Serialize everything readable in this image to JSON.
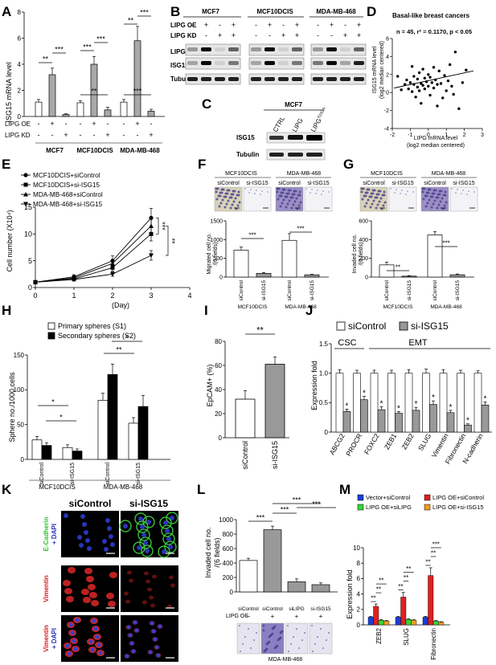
{
  "panels": [
    "A",
    "B",
    "C",
    "D",
    "E",
    "F",
    "G",
    "H",
    "I",
    "J",
    "K",
    "L",
    "M"
  ],
  "sig": {
    "s1": "*",
    "s2": "**",
    "s3": "***"
  },
  "A": {
    "chart_data": {
      "type": "bar",
      "ylabel": "ISG15 mRNA level",
      "ylim": [
        0,
        8
      ],
      "yticks": [
        "0",
        "2",
        "4",
        "6",
        "8"
      ],
      "row_labels": [
        "LIPG OE",
        "LIPG KD"
      ],
      "groups": [
        {
          "name": "MCF7",
          "values": [
            1.1,
            3.2,
            0.15
          ],
          "errors": [
            0.2,
            0.5,
            0.05
          ]
        },
        {
          "name": "MCF10DCIS",
          "values": [
            1.05,
            4.0,
            0.5
          ],
          "errors": [
            0.15,
            0.6,
            0.2
          ]
        },
        {
          "name": "MDA-MB-468",
          "values": [
            1.1,
            5.8,
            0.4
          ],
          "errors": [
            0.2,
            1.1,
            0.15
          ]
        }
      ],
      "oe": [
        "-",
        "+",
        "-"
      ],
      "kd": [
        "-",
        "-",
        "+"
      ]
    }
  },
  "B": {
    "lines": [
      "MCF7",
      "MCF10DCIS",
      "MDA-MB-468"
    ],
    "rows": [
      "LIPG OE",
      "LIPG KD"
    ],
    "oe": [
      "-",
      "+",
      "-",
      "+"
    ],
    "kd": [
      "-",
      "-",
      "+",
      "+"
    ],
    "proteins": [
      "LIPG",
      "ISG15",
      "Tubulin"
    ]
  },
  "C": {
    "title": "MCF7",
    "lanes": [
      "CTRL",
      "LIPG",
      "LIPG"
    ],
    "lane3_sup": "S163A",
    "proteins": [
      "ISG15",
      "Tubulin"
    ]
  },
  "D": {
    "chart_data": {
      "type": "scatter",
      "title": "Basal-like breast cancers",
      "stats": "n = 45,  r² = 0.1170,  p < 0.05",
      "ylabel1": "ISG15 mRNA level",
      "ylabel2": "(log2 median centered)",
      "xlabel1": "LIPG mRNA level",
      "xlabel2": "(log2 median centered)",
      "xlim": [
        -2,
        3
      ],
      "ylim": [
        -4,
        6
      ],
      "xticks": [
        "-2",
        "-1",
        "0",
        "1",
        "2",
        "3"
      ],
      "yticks": [
        "-4",
        "-2",
        "0",
        "2",
        "4",
        "6"
      ],
      "fit": {
        "x": [
          -1.9,
          2.5
        ],
        "y": [
          0.5,
          2.4
        ]
      },
      "points": [
        [
          -1.7,
          1.8
        ],
        [
          -1.5,
          0.3
        ],
        [
          -1.3,
          0.9
        ],
        [
          -1.2,
          1.4
        ],
        [
          -1.1,
          0.4
        ],
        [
          -1.0,
          1.1
        ],
        [
          -0.9,
          0.1
        ],
        [
          -0.8,
          0.9
        ],
        [
          -0.8,
          1.8
        ],
        [
          -0.7,
          -0.5
        ],
        [
          -0.6,
          1.5
        ],
        [
          -0.6,
          0.6
        ],
        [
          -0.5,
          2.2
        ],
        [
          -0.5,
          0.2
        ],
        [
          -0.4,
          1.0
        ],
        [
          -0.4,
          -1.2
        ],
        [
          -0.3,
          2.6
        ],
        [
          -0.3,
          0.8
        ],
        [
          -0.2,
          1.6
        ],
        [
          -0.2,
          0.4
        ],
        [
          -0.1,
          1.2
        ],
        [
          0.0,
          2.0
        ],
        [
          0.0,
          0.7
        ],
        [
          0.1,
          1.7
        ],
        [
          0.1,
          -0.3
        ],
        [
          0.2,
          1.1
        ],
        [
          0.3,
          2.8
        ],
        [
          0.3,
          0.5
        ],
        [
          0.4,
          1.4
        ],
        [
          0.5,
          -1.5
        ],
        [
          0.5,
          0.9
        ],
        [
          0.6,
          2.4
        ],
        [
          0.7,
          1.0
        ],
        [
          0.8,
          -0.6
        ],
        [
          0.9,
          1.9
        ],
        [
          1.0,
          0.2
        ],
        [
          1.1,
          1.3
        ],
        [
          1.2,
          3.1
        ],
        [
          1.3,
          0.7
        ],
        [
          1.5,
          4.5
        ],
        [
          1.7,
          -1.8
        ],
        [
          1.9,
          1.1
        ],
        [
          2.1,
          2.5
        ],
        [
          1.4,
          -0.2
        ],
        [
          -0.9,
          2.9
        ]
      ]
    }
  },
  "E": {
    "chart_data": {
      "type": "line",
      "ylabel": "Cell number (X10⁴)",
      "xlabel": "(Day)",
      "xlim": [
        0,
        4
      ],
      "ylim": [
        0,
        15
      ],
      "xticks": [
        "0",
        "1",
        "2",
        "3",
        "4"
      ],
      "yticks": [
        "0",
        "5",
        "10",
        "15"
      ],
      "x": [
        0,
        1,
        2,
        3
      ],
      "series": [
        {
          "name": "MCF10DCIS+siControl",
          "values": [
            1,
            2,
            5,
            13
          ],
          "errors": [
            0,
            0.4,
            0.9,
            1.8
          ],
          "marker": "circle"
        },
        {
          "name": "MCF10DCIS+si-ISG15",
          "values": [
            1,
            1.6,
            3.7,
            10
          ],
          "errors": [
            0,
            0.3,
            0.6,
            1.3
          ],
          "marker": "square"
        },
        {
          "name": "MDA-MB-468+siControl",
          "values": [
            1,
            1.8,
            4.5,
            11.5
          ],
          "errors": [
            0,
            0.3,
            0.7,
            1.5
          ],
          "marker": "triangle"
        },
        {
          "name": "MDA-MB-468+si-ISG15",
          "values": [
            1,
            1.5,
            2.5,
            6
          ],
          "errors": [
            0,
            0.3,
            0.4,
            0.9
          ],
          "marker": "tri-down"
        }
      ]
    }
  },
  "F": {
    "lines": [
      "MCF10DCIS",
      "MDA-MB-468"
    ],
    "conditions": [
      "siControl",
      "si-ISG15",
      "siControl",
      "si-ISG15"
    ],
    "chart_data": {
      "type": "bar",
      "ylabel1": "Migrated cell no.",
      "ylabel2": "/(6 fields)",
      "ylim": [
        0,
        1500
      ],
      "yticks": [
        "0",
        "500",
        "1000",
        "1500"
      ],
      "categories": [
        "siControl",
        "si-ISG15",
        "siControl",
        "si-ISG15"
      ],
      "values": [
        720,
        100,
        980,
        60
      ],
      "errors": [
        80,
        20,
        180,
        15
      ],
      "group_labels": [
        "MCF10DCIS",
        "MDA-MB-468"
      ]
    }
  },
  "G": {
    "lines": [
      "MCF10DCIS",
      "MDA-MB-468"
    ],
    "conditions": [
      "siControl",
      "si-ISG15",
      "siControl",
      "si-ISG15"
    ],
    "chart_data": {
      "type": "bar",
      "ylabel1": "Invaded cell no.",
      "ylabel2": "/(6 fields)",
      "ylim": [
        0,
        600
      ],
      "yticks": [
        "0",
        "200",
        "400",
        "600"
      ],
      "categories": [
        "siControl",
        "si-ISG15",
        "siControl",
        "si-ISG15"
      ],
      "values": [
        130,
        10,
        450,
        25
      ],
      "errors": [
        30,
        5,
        35,
        8
      ],
      "group_labels": [
        "MCF10DCIS",
        "MDA-MB-468"
      ]
    }
  },
  "H": {
    "chart_data": {
      "type": "bar",
      "ylabel": "Sphere no./1000 cells",
      "ylim": [
        0,
        150
      ],
      "yticks": [
        "0",
        "50",
        "100",
        "150"
      ],
      "categories": [
        "siControl",
        "si-ISG15",
        "siControl",
        "si-ISG15"
      ],
      "series": [
        {
          "name": "Primary spheres (S1)",
          "values": [
            28,
            17,
            85,
            52
          ],
          "errors": [
            5,
            4,
            10,
            8
          ]
        },
        {
          "name": "Secondary spheres (S2)",
          "values": [
            20,
            12,
            122,
            76
          ],
          "errors": [
            4,
            3,
            15,
            16
          ]
        }
      ],
      "group_labels": [
        "MCF10DCIS",
        "MDA-MB-468"
      ]
    }
  },
  "I": {
    "chart_data": {
      "type": "bar",
      "ylabel": "EpCAM+ (%)",
      "ylim": [
        0,
        80
      ],
      "yticks": [
        "0",
        "20",
        "40",
        "60",
        "80"
      ],
      "categories": [
        "siControl",
        "si-ISG15"
      ],
      "values": [
        32,
        61
      ],
      "errors": [
        7,
        6
      ]
    }
  },
  "J": {
    "chart_data": {
      "type": "bar",
      "ylabel": "Expression fold",
      "ylim": [
        0,
        1.5
      ],
      "yticks": [
        "0",
        "0.5",
        "1.0",
        "1.5"
      ],
      "groups": [
        "CSC",
        "EMT"
      ],
      "categories": [
        "ABCG2",
        "PROCR",
        "FOXC2",
        "ZEB1",
        "ZEB2",
        "SLUG",
        "Vimentin",
        "Fibronectin",
        "N-cadherin"
      ],
      "series": [
        {
          "name": "siControl",
          "values": [
            1,
            1,
            1,
            1,
            1,
            1,
            1,
            1,
            1
          ],
          "errors": [
            0.06,
            0.05,
            0.05,
            0.05,
            0.06,
            0.07,
            0.06,
            0.05,
            0.04
          ]
        },
        {
          "name": "si-ISG15",
          "values": [
            0.35,
            0.55,
            0.38,
            0.32,
            0.37,
            0.47,
            0.33,
            0.12,
            0.46
          ],
          "errors": [
            0.04,
            0.06,
            0.05,
            0.03,
            0.05,
            0.06,
            0.04,
            0.02,
            0.05
          ]
        }
      ]
    }
  },
  "K": {
    "cols": [
      "siControl",
      "si-ISG15"
    ],
    "rows": [
      {
        "stain": "E-Cadherin",
        "dapi": "+ DAPI",
        "color": "#2ec42e"
      },
      {
        "stain": "Vimentin",
        "dapi": "",
        "color": "#d92020"
      },
      {
        "stain": "Vimentin",
        "dapi": "+ DAPI",
        "color": "#d92020"
      }
    ]
  },
  "L": {
    "chart_data": {
      "type": "bar",
      "ylabel1": "Invaded cell no.",
      "ylabel2": "/(6 fields)",
      "ylim": [
        0,
        1000
      ],
      "yticks": [
        "0",
        "200",
        "400",
        "600",
        "800",
        "1000"
      ],
      "categories": [
        "siControl",
        "siControl",
        "siLIPG",
        "si-ISG15"
      ],
      "oe_label": "LIPG OE",
      "oe": [
        "−",
        "+",
        "+",
        "+"
      ],
      "values": [
        435,
        860,
        140,
        100
      ],
      "errors": [
        30,
        50,
        40,
        25
      ],
      "cell_line": "MDA-MB-468"
    }
  },
  "M": {
    "chart_data": {
      "type": "bar",
      "ylabel": "Expression fold",
      "ylim": [
        0,
        10
      ],
      "yticks": [
        "0",
        "2",
        "4",
        "6",
        "8",
        "10"
      ],
      "categories": [
        "ZEB2",
        "SLUG",
        "Fibronectin"
      ],
      "series": [
        {
          "name": "Vector+siControl",
          "color": "#1a3fd6",
          "values": [
            1,
            1,
            1
          ],
          "errors": [
            0.1,
            0.1,
            0.1
          ]
        },
        {
          "name": "LIPG OE+siControl",
          "color": "#e02020",
          "values": [
            2.4,
            3.6,
            6.4
          ],
          "errors": [
            0.3,
            0.6,
            1.0
          ]
        },
        {
          "name": "LIPG OE+siLIPG",
          "color": "#38d638",
          "values": [
            0.6,
            0.7,
            0.5
          ],
          "errors": [
            0.08,
            0.08,
            0.06
          ]
        },
        {
          "name": "LIPG OE+si-ISG15",
          "color": "#f0a020",
          "values": [
            0.5,
            0.6,
            0.35
          ],
          "errors": [
            0.06,
            0.07,
            0.05
          ]
        }
      ]
    }
  }
}
